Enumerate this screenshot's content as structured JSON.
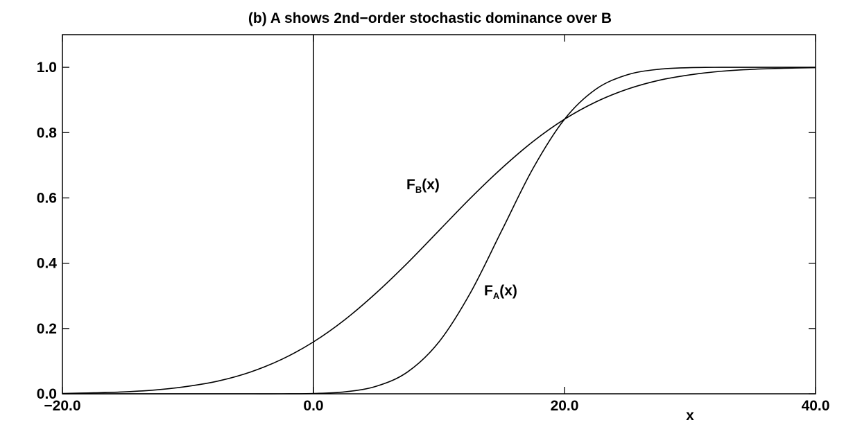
{
  "chart_data": {
    "type": "line",
    "title": "(b) A shows 2nd−order stochastic dominance over B",
    "x_label": "x",
    "x": [
      -20,
      -17.5,
      -15,
      -12.5,
      -10,
      -7.5,
      -5,
      -2.5,
      0,
      2.5,
      5,
      7.5,
      10,
      12.5,
      15,
      17.5,
      20,
      22.5,
      25,
      27.5,
      30,
      32.5,
      35,
      37.5,
      40
    ],
    "series": [
      {
        "name": "F_A(x)",
        "label": {
          "main": "F",
          "sub": "A",
          "rest": "(x)"
        },
        "color": "#000000",
        "values": [
          0,
          0,
          0,
          0,
          0,
          0,
          0,
          0,
          0.001,
          0.006,
          0.023,
          0.067,
          0.159,
          0.309,
          0.5,
          0.691,
          0.841,
          0.933,
          0.977,
          0.994,
          0.999,
          1,
          1,
          1,
          1
        ]
      },
      {
        "name": "F_B(x)",
        "label": {
          "main": "F",
          "sub": "B",
          "rest": "(x)"
        },
        "color": "#000000",
        "values": [
          0.001,
          0.003,
          0.006,
          0.012,
          0.023,
          0.04,
          0.067,
          0.106,
          0.159,
          0.227,
          0.309,
          0.401,
          0.5,
          0.599,
          0.691,
          0.773,
          0.841,
          0.894,
          0.933,
          0.96,
          0.977,
          0.988,
          0.994,
          0.997,
          0.999
        ]
      }
    ],
    "xlim": [
      -20,
      40
    ],
    "ylim": [
      0,
      1.1
    ],
    "xticks": [
      {
        "value": -20,
        "label": "−20.0"
      },
      {
        "value": 0,
        "label": "0.0"
      },
      {
        "value": 20,
        "label": "20.0"
      },
      {
        "value": 40,
        "label": "40.0"
      }
    ],
    "yticks": [
      {
        "value": 0,
        "label": "0.0"
      },
      {
        "value": 0.2,
        "label": "0.2"
      },
      {
        "value": 0.4,
        "label": "0.4"
      },
      {
        "value": 0.6,
        "label": "0.6"
      },
      {
        "value": 0.8,
        "label": "0.8"
      },
      {
        "value": 1,
        "label": "1.0"
      }
    ],
    "grid": false
  }
}
